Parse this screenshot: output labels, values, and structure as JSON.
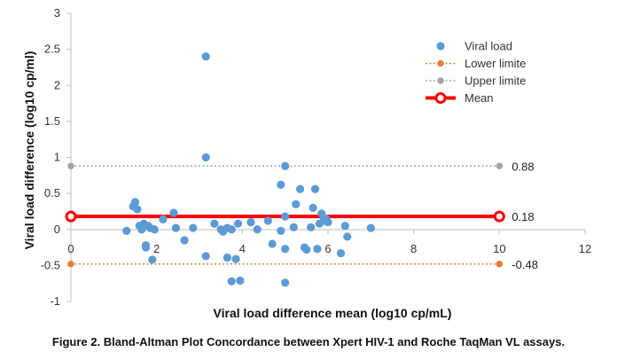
{
  "chart_data": {
    "type": "scatter",
    "xlabel": "Viral load difference mean (log10 cp/mL)",
    "ylabel": "Viral load difference (log10 cp/ml)",
    "xlim": [
      0,
      12
    ],
    "ylim": [
      -1,
      3
    ],
    "x_ticks": [
      "0",
      "2",
      "4",
      "6",
      "8",
      "10",
      "12"
    ],
    "y_ticks": [
      "-1",
      "-0.5",
      "0",
      "0.5",
      "1",
      "1.5",
      "2",
      "2.5",
      "3"
    ],
    "grid": false,
    "legend_position": "top-right",
    "series": [
      {
        "name": "Viral load",
        "color": "#5b9bd5",
        "marker": "circle",
        "points": [
          [
            1.3,
            -0.02
          ],
          [
            1.45,
            0.32
          ],
          [
            1.5,
            0.38
          ],
          [
            1.55,
            0.28
          ],
          [
            1.6,
            0.05
          ],
          [
            1.65,
            0.0
          ],
          [
            1.7,
            0.08
          ],
          [
            1.75,
            -0.22
          ],
          [
            1.75,
            -0.25
          ],
          [
            1.8,
            0.05
          ],
          [
            1.85,
            0.02
          ],
          [
            1.9,
            -0.42
          ],
          [
            1.95,
            0.0
          ],
          [
            2.15,
            0.14
          ],
          [
            2.4,
            0.23
          ],
          [
            2.45,
            0.02
          ],
          [
            2.65,
            -0.15
          ],
          [
            2.85,
            0.02
          ],
          [
            3.15,
            2.4
          ],
          [
            3.15,
            1.0
          ],
          [
            3.15,
            -0.37
          ],
          [
            3.35,
            0.08
          ],
          [
            3.5,
            0.0
          ],
          [
            3.55,
            -0.03
          ],
          [
            3.65,
            0.02
          ],
          [
            3.65,
            -0.39
          ],
          [
            3.75,
            0.0
          ],
          [
            3.75,
            -0.72
          ],
          [
            3.85,
            -0.41
          ],
          [
            3.9,
            0.08
          ],
          [
            3.95,
            -0.71
          ],
          [
            4.2,
            0.1
          ],
          [
            4.35,
            0.0
          ],
          [
            4.6,
            0.12
          ],
          [
            4.7,
            -0.2
          ],
          [
            4.9,
            -0.02
          ],
          [
            4.9,
            0.62
          ],
          [
            5.0,
            -0.27
          ],
          [
            5.0,
            0.18
          ],
          [
            5.0,
            0.88
          ],
          [
            5.0,
            -0.74
          ],
          [
            5.2,
            0.03
          ],
          [
            5.25,
            0.35
          ],
          [
            5.35,
            0.56
          ],
          [
            5.45,
            -0.25
          ],
          [
            5.5,
            -0.28
          ],
          [
            5.6,
            0.03
          ],
          [
            5.65,
            0.3
          ],
          [
            5.7,
            0.56
          ],
          [
            5.75,
            -0.27
          ],
          [
            5.8,
            0.08
          ],
          [
            5.85,
            0.22
          ],
          [
            5.9,
            0.12
          ],
          [
            5.95,
            0.15
          ],
          [
            6.0,
            0.1
          ],
          [
            6.3,
            -0.33
          ],
          [
            6.4,
            0.05
          ],
          [
            6.45,
            -0.1
          ],
          [
            7.0,
            0.02
          ]
        ]
      },
      {
        "name": "Lower limite",
        "color": "#ed7d31",
        "style": "dotted",
        "points": [
          [
            0,
            -0.48
          ],
          [
            10,
            -0.48
          ]
        ]
      },
      {
        "name": "Upper limite",
        "color": "#a5a5a5",
        "style": "dotted",
        "points": [
          [
            0,
            0.88
          ],
          [
            10,
            0.88
          ]
        ]
      },
      {
        "name": "Mean",
        "color": "#ff0000",
        "style": "solid",
        "points": [
          [
            0,
            0.18
          ],
          [
            10,
            0.18
          ]
        ]
      }
    ],
    "annotations": [
      {
        "text": "0.88",
        "x": 10,
        "y": 0.88
      },
      {
        "text": "0.18",
        "x": 10,
        "y": 0.18
      },
      {
        "text": "-0.48",
        "x": 10,
        "y": -0.48
      }
    ]
  },
  "caption": "Figure 2. Bland-Altman Plot Concordance between Xpert HIV-1 and Roche TaqMan VL assays."
}
